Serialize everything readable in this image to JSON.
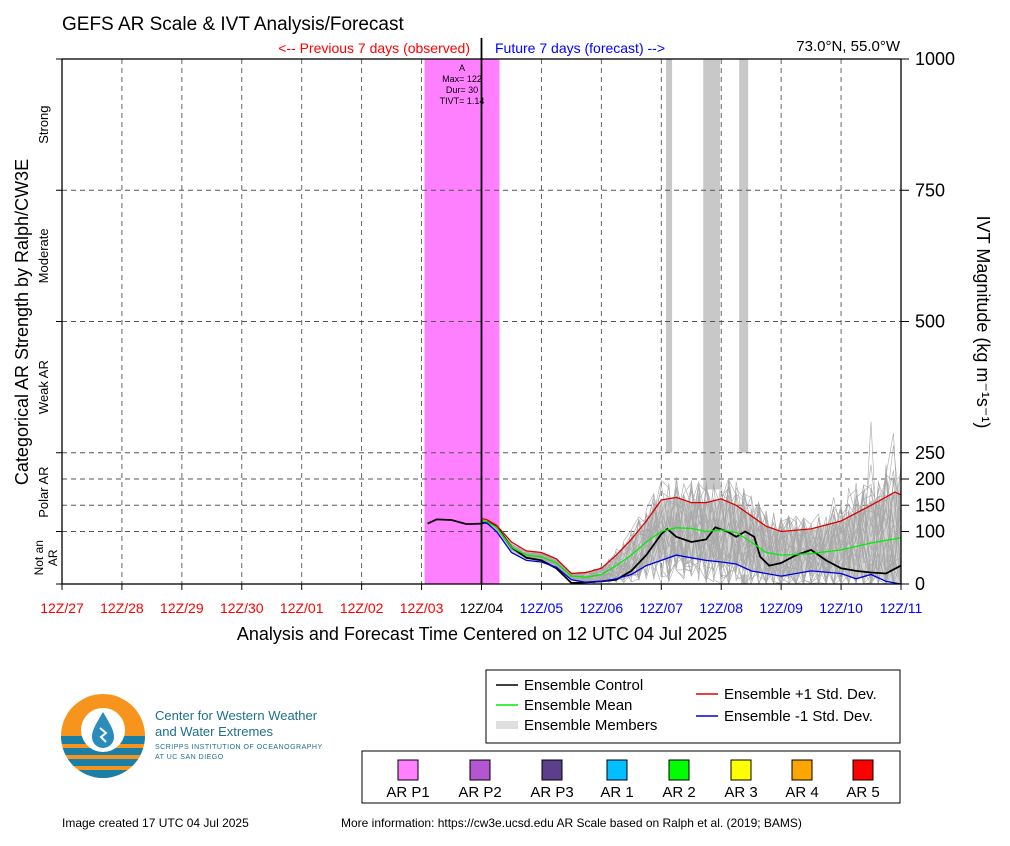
{
  "chart_data": {
    "type": "line",
    "title": "GEFS AR Scale & IVT Analysis/Forecast",
    "location": "73.0°N, 55.0°W",
    "previous_label": "<-- Previous 7 days (observed)",
    "future_label": "Future 7 days (forecast) -->",
    "xlabel": "Analysis and Forecast Time Centered on 12 UTC 04 Jul 2025",
    "ylabel_left": "Categorical AR Strength by Ralph/CW3E",
    "ylabel_right": "IVT Magnitude (kg m⁻¹s⁻¹)",
    "x_ticks": [
      "12Z/27",
      "12Z/28",
      "12Z/29",
      "12Z/30",
      "12Z/01",
      "12Z/02",
      "12Z/03",
      "12Z/04",
      "12Z/05",
      "12Z/06",
      "12Z/07",
      "12Z/08",
      "12Z/09",
      "12Z/10",
      "12Z/11"
    ],
    "x_tick_colors": [
      "#ff0000",
      "#ff0000",
      "#ff0000",
      "#ff0000",
      "#ff0000",
      "#ff0000",
      "#ff0000",
      "#000000",
      "#0000ff",
      "#0000ff",
      "#0000ff",
      "#0000ff",
      "#0000ff",
      "#0000ff",
      "#0000ff"
    ],
    "x_range_days": [
      0,
      14
    ],
    "analysis_day": 7,
    "y_ticks": [
      0,
      100,
      150,
      200,
      250,
      500,
      750,
      1000
    ],
    "y_range": [
      0,
      1000
    ],
    "grid": true,
    "categories": [
      {
        "label": "Not an",
        "label2": "AR",
        "range": [
          0,
          100
        ]
      },
      {
        "label": "Polar AR",
        "range": [
          100,
          250
        ]
      },
      {
        "label": "Weak AR",
        "range": [
          250,
          500
        ]
      },
      {
        "label": "Moderate",
        "range": [
          500,
          750
        ]
      },
      {
        "label": "Strong",
        "range": [
          750,
          1000
        ]
      }
    ],
    "ar_event": {
      "start_day": 6.05,
      "end_day": 7.3,
      "color": "#ff80ff",
      "label_lines": [
        "A",
        "Max= 122",
        "Dur= 30",
        "TIVT= 1.14"
      ]
    },
    "gray_bars": [
      {
        "start_day": 10.08,
        "end_day": 10.18,
        "ivt_bottom": 250
      },
      {
        "start_day": 10.7,
        "end_day": 10.98,
        "ivt_bottom": 180
      },
      {
        "start_day": 11.3,
        "end_day": 11.45,
        "ivt_bottom": 250
      },
      {
        "start_day": 11.33,
        "end_day": 11.45,
        "ivt_bottom": 0,
        "ivt_top": 18
      }
    ],
    "series": [
      {
        "name": "Ensemble Control",
        "color": "#000000",
        "x": [
          6.1,
          6.25,
          6.5,
          6.75,
          7.0,
          7.1,
          7.25,
          7.5,
          7.75,
          8.0,
          8.25,
          8.5,
          8.75,
          9.0,
          9.25,
          9.5,
          9.75,
          10.0,
          10.1,
          10.25,
          10.5,
          10.75,
          10.9,
          11.1,
          11.25,
          11.4,
          11.55,
          11.65,
          11.8,
          12.0,
          12.25,
          12.5,
          12.75,
          13.0,
          13.25,
          13.5,
          13.75,
          14.0
        ],
        "y": [
          115,
          123,
          122,
          114,
          115,
          118,
          110,
          70,
          50,
          45,
          30,
          2,
          3,
          5,
          8,
          25,
          55,
          95,
          105,
          90,
          80,
          85,
          108,
          100,
          90,
          100,
          90,
          52,
          35,
          40,
          55,
          65,
          45,
          30,
          25,
          22,
          20,
          35
        ]
      },
      {
        "name": "Ensemble Mean",
        "color": "#00ee00",
        "x": [
          7.0,
          7.1,
          7.25,
          7.5,
          7.75,
          8.0,
          8.25,
          8.5,
          8.75,
          9.0,
          9.25,
          9.5,
          9.75,
          10.0,
          10.25,
          10.5,
          10.75,
          11.0,
          11.25,
          11.5,
          11.75,
          12.0,
          12.5,
          13.0,
          13.5,
          14.0
        ],
        "y": [
          122,
          118,
          108,
          70,
          55,
          52,
          40,
          15,
          13,
          18,
          35,
          55,
          80,
          100,
          107,
          106,
          100,
          103,
          98,
          80,
          60,
          55,
          58,
          65,
          78,
          88
        ]
      },
      {
        "name": "Ensemble +1 Std. Dev.",
        "color": "#dd0000",
        "x": [
          7.0,
          7.1,
          7.25,
          7.5,
          7.75,
          8.0,
          8.25,
          8.5,
          8.75,
          9.0,
          9.25,
          9.5,
          9.75,
          10.0,
          10.25,
          10.5,
          10.75,
          11.0,
          11.25,
          11.5,
          11.75,
          12.0,
          12.5,
          13.0,
          13.5,
          13.9,
          14.0
        ],
        "y": [
          125,
          122,
          112,
          80,
          63,
          60,
          48,
          20,
          22,
          30,
          55,
          85,
          120,
          160,
          165,
          155,
          155,
          162,
          150,
          130,
          110,
          100,
          105,
          120,
          150,
          175,
          170
        ]
      },
      {
        "name": "Ensemble -1 Std. Dev.",
        "color": "#0000dd",
        "x": [
          7.0,
          7.1,
          7.25,
          7.5,
          7.75,
          8.0,
          8.25,
          8.5,
          8.75,
          9.0,
          9.25,
          9.5,
          9.75,
          10.0,
          10.25,
          10.5,
          10.75,
          11.0,
          11.25,
          11.5,
          11.75,
          12.0,
          12.5,
          13.0,
          13.25,
          13.5,
          13.75,
          14.0
        ],
        "y": [
          118,
          115,
          100,
          60,
          45,
          42,
          32,
          8,
          3,
          5,
          10,
          18,
          35,
          45,
          55,
          50,
          45,
          42,
          38,
          25,
          20,
          15,
          25,
          20,
          10,
          18,
          5,
          0
        ]
      },
      {
        "name": "Ensemble Members",
        "color": "#aaaaaa"
      }
    ],
    "ar_scale_legend": [
      {
        "label": "AR P1",
        "color": "#ff80ff"
      },
      {
        "label": "AR P2",
        "color": "#b455d1"
      },
      {
        "label": "AR P3",
        "color": "#5b3f8c"
      },
      {
        "label": "AR 1",
        "color": "#00bfff"
      },
      {
        "label": "AR 2",
        "color": "#00ff00"
      },
      {
        "label": "AR 3",
        "color": "#ffff00"
      },
      {
        "label": "AR 4",
        "color": "#ffa500"
      },
      {
        "label": "AR 5",
        "color": "#ff0000"
      }
    ]
  },
  "logo": {
    "title_line1": "Center for Western Weather",
    "title_line2": "and Water Extremes",
    "sub_line1": "SCRIPPS INSTITUTION OF OCEANOGRAPHY",
    "sub_line2": "AT UC SAN DIEGO"
  },
  "footer": {
    "created": "Image created 17 UTC 04 Jul 2025",
    "more_info": "More information: https://cw3e.ucsd.edu AR Scale based on Ralph et al. (2019; BAMS)"
  }
}
